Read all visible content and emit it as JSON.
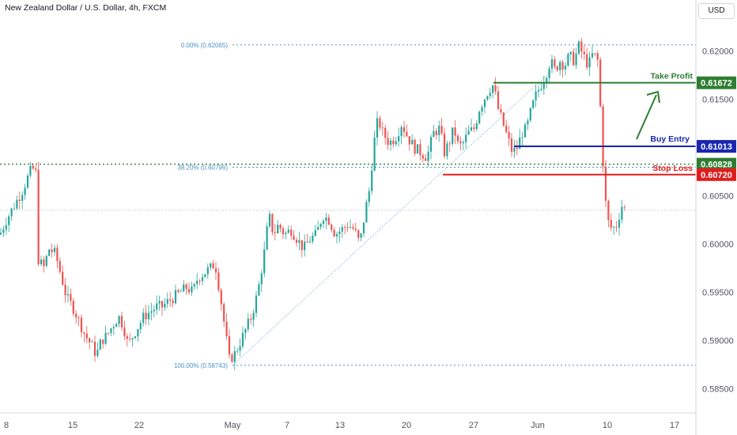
{
  "header": {
    "title": "New Zealand Dollar / U.S. Dollar, 4h, FXCM",
    "currency": "USD"
  },
  "colors": {
    "up": "#26a69a",
    "down": "#ef5350",
    "take_profit": "#2e7d32",
    "buy_entry": "#1a26b0",
    "stop_loss": "#e21c1c",
    "fib": "#4a90c8",
    "level_dotted": "#2e7d32"
  },
  "chart_data": {
    "type": "candlestick",
    "ylim": [
      0.5825,
      0.6235
    ],
    "y_ticks": [
      "0.62000",
      "0.61500",
      "0.61000",
      "0.60500",
      "0.60000",
      "0.59500",
      "0.59000",
      "0.58500"
    ],
    "x_ticks": [
      "8",
      "15",
      "22",
      "May",
      "7",
      "13",
      "20",
      "27",
      "Jun",
      "10",
      "17"
    ],
    "fib_levels": [
      {
        "label": "0.00% (0.62065)",
        "value": 0.62065
      },
      {
        "label": "38.20% (0.60796)",
        "value": 0.60796
      },
      {
        "label": "100.00% (0.58743)",
        "value": 0.58743
      }
    ],
    "levels": [
      {
        "name": "Take Profit",
        "value": 0.61672,
        "price_label": "0.61672"
      },
      {
        "name": "Buy Entry",
        "value": 0.61013,
        "price_label": "0.61013"
      },
      {
        "name": "Stop Loss",
        "value": 0.6072,
        "price_label": "0.60720"
      }
    ],
    "dotted_level": {
      "value": 0.60828,
      "price_label": "0.60828"
    },
    "price_path": [
      [
        0,
        0.601
      ],
      [
        8,
        0.6025
      ],
      [
        18,
        0.604
      ],
      [
        28,
        0.6055
      ],
      [
        38,
        0.6075
      ],
      [
        45,
        0.608
      ],
      [
        48,
        0.5985
      ],
      [
        55,
        0.5975
      ],
      [
        62,
        0.5995
      ],
      [
        70,
        0.599
      ],
      [
        78,
        0.5965
      ],
      [
        84,
        0.5945
      ],
      [
        92,
        0.5935
      ],
      [
        100,
        0.592
      ],
      [
        108,
        0.5905
      ],
      [
        116,
        0.5895
      ],
      [
        122,
        0.5885
      ],
      [
        128,
        0.59
      ],
      [
        135,
        0.5905
      ],
      [
        142,
        0.5915
      ],
      [
        150,
        0.5925
      ],
      [
        156,
        0.5915
      ],
      [
        162,
        0.5895
      ],
      [
        168,
        0.5905
      ],
      [
        175,
        0.5915
      ],
      [
        182,
        0.5925
      ],
      [
        190,
        0.593
      ],
      [
        198,
        0.5935
      ],
      [
        205,
        0.5935
      ],
      [
        212,
        0.594
      ],
      [
        220,
        0.5945
      ],
      [
        228,
        0.595
      ],
      [
        236,
        0.5955
      ],
      [
        244,
        0.595
      ],
      [
        250,
        0.5965
      ],
      [
        258,
        0.597
      ],
      [
        266,
        0.5975
      ],
      [
        272,
        0.598
      ],
      [
        278,
        0.595
      ],
      [
        284,
        0.5915
      ],
      [
        290,
        0.588
      ],
      [
        296,
        0.5885
      ],
      [
        302,
        0.5895
      ],
      [
        310,
        0.591
      ],
      [
        318,
        0.5925
      ],
      [
        326,
        0.595
      ],
      [
        334,
        0.599
      ],
      [
        340,
        0.603
      ],
      [
        346,
        0.601
      ],
      [
        352,
        0.602
      ],
      [
        360,
        0.601
      ],
      [
        368,
        0.6015
      ],
      [
        376,
        0.6005
      ],
      [
        384,
        0.5995
      ],
      [
        392,
        0.6005
      ],
      [
        400,
        0.601
      ],
      [
        408,
        0.603
      ],
      [
        416,
        0.6025
      ],
      [
        424,
        0.601
      ],
      [
        432,
        0.6015
      ],
      [
        440,
        0.602
      ],
      [
        448,
        0.6015
      ],
      [
        455,
        0.6
      ],
      [
        462,
        0.6035
      ],
      [
        468,
        0.606
      ],
      [
        472,
        0.61
      ],
      [
        478,
        0.613
      ],
      [
        484,
        0.6115
      ],
      [
        492,
        0.6105
      ],
      [
        500,
        0.611
      ],
      [
        508,
        0.6125
      ],
      [
        516,
        0.611
      ],
      [
        524,
        0.61
      ],
      [
        532,
        0.6095
      ],
      [
        540,
        0.609
      ],
      [
        548,
        0.6115
      ],
      [
        556,
        0.612
      ],
      [
        562,
        0.6095
      ],
      [
        568,
        0.6105
      ],
      [
        574,
        0.612
      ],
      [
        580,
        0.61
      ],
      [
        586,
        0.6105
      ],
      [
        592,
        0.6115
      ],
      [
        600,
        0.612
      ],
      [
        606,
        0.614
      ],
      [
        612,
        0.615
      ],
      [
        618,
        0.616
      ],
      [
        624,
        0.6165
      ],
      [
        630,
        0.614
      ],
      [
        636,
        0.6125
      ],
      [
        642,
        0.611
      ],
      [
        648,
        0.6095
      ],
      [
        654,
        0.61
      ],
      [
        660,
        0.6115
      ],
      [
        666,
        0.612
      ],
      [
        672,
        0.614
      ],
      [
        678,
        0.6155
      ],
      [
        684,
        0.6165
      ],
      [
        690,
        0.6175
      ],
      [
        696,
        0.619
      ],
      [
        702,
        0.618
      ],
      [
        708,
        0.619
      ],
      [
        714,
        0.6185
      ],
      [
        720,
        0.6195
      ],
      [
        726,
        0.619
      ],
      [
        732,
        0.6205
      ],
      [
        738,
        0.6195
      ],
      [
        744,
        0.6185
      ],
      [
        750,
        0.6198
      ],
      [
        756,
        0.619
      ],
      [
        760,
        0.613
      ],
      [
        764,
        0.606
      ],
      [
        768,
        0.6025
      ],
      [
        774,
        0.6015
      ],
      [
        780,
        0.602
      ],
      [
        786,
        0.604
      ],
      [
        792,
        0.6035
      ]
    ]
  }
}
